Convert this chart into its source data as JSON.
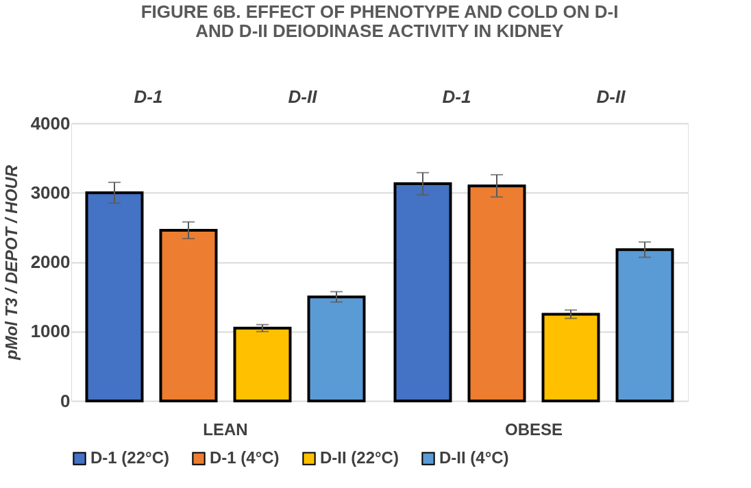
{
  "chart_data": {
    "type": "bar",
    "title": [
      "FIGURE 6B. EFFECT OF PHENOTYPE AND COLD ON D-I",
      "AND D-II DEIODINASE ACTIVITY IN KIDNEY"
    ],
    "ylabel": "pMol T3 / DEPOT / HOUR",
    "categories": [
      "LEAN",
      "OBESE"
    ],
    "series": [
      {
        "name": "D-1 (22°C)",
        "color": "#4472c4",
        "values": [
          3000,
          3130
        ],
        "errors": [
          150,
          160
        ]
      },
      {
        "name": "D-1 (4°C)",
        "color": "#ed7d31",
        "values": [
          2460,
          3100
        ],
        "errors": [
          120,
          160
        ]
      },
      {
        "name": "D-II (22°C)",
        "color": "#ffc000",
        "values": [
          1050,
          1250
        ],
        "errors": [
          50,
          60
        ]
      },
      {
        "name": "D-II (4°C)",
        "color": "#5b9bd5",
        "values": [
          1500,
          2180
        ],
        "errors": [
          75,
          110
        ]
      }
    ],
    "annotations": [
      "D-1",
      "D-II",
      "D-1",
      "D-II"
    ],
    "ylim": [
      0,
      4000
    ],
    "yticks": [
      0,
      1000,
      2000,
      3000,
      4000
    ],
    "grid": "y",
    "legend": "bottom"
  }
}
